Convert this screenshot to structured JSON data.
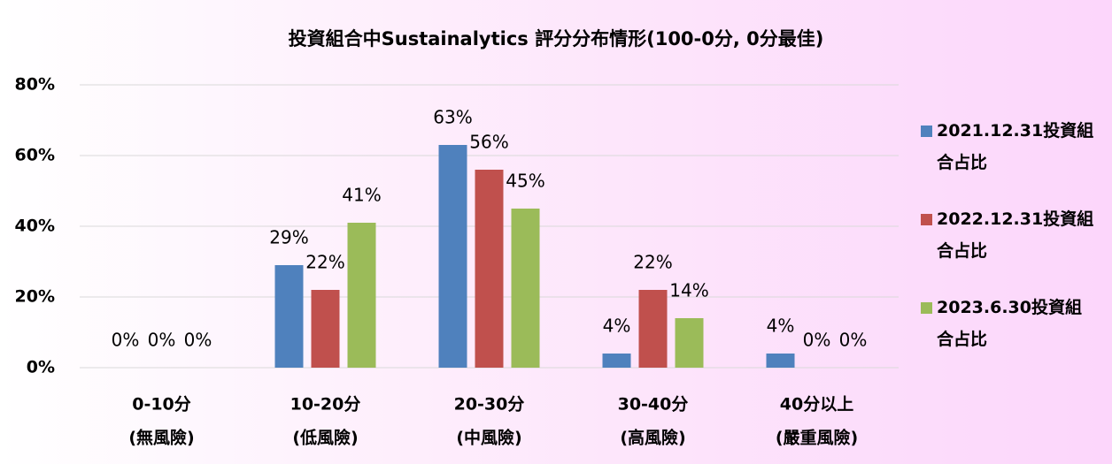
{
  "chart_data": {
    "type": "bar",
    "title": "投資組合中Sustainalytics 評分分布情形(100-0分, 0分最佳)",
    "categories": [
      [
        "0-10分",
        "(無風險)"
      ],
      [
        "10-20分",
        "(低風險)"
      ],
      [
        "20-30分",
        "(中風險)"
      ],
      [
        "30-40分",
        "(高風險)"
      ],
      [
        "40分以上",
        "(嚴重風險)"
      ]
    ],
    "series": [
      {
        "name": "2021.12.31投資組合占比",
        "color": "#4f81bd",
        "values": [
          0,
          29,
          63,
          4,
          4
        ],
        "value_labels": [
          "0%",
          "29%",
          "63%",
          "4%",
          "4%"
        ]
      },
      {
        "name": "2022.12.31投資組合占比",
        "color": "#c0504d",
        "values": [
          0,
          22,
          56,
          22,
          0
        ],
        "value_labels": [
          "0%",
          "22%",
          "56%",
          "22%",
          "0%"
        ]
      },
      {
        "name": "2023.6.30投資組合占比",
        "color": "#9bbb59",
        "values": [
          0,
          41,
          45,
          14,
          0
        ],
        "value_labels": [
          "0%",
          "41%",
          "45%",
          "14%",
          "0%"
        ]
      }
    ],
    "ylim": [
      0,
      80
    ],
    "yticks": [
      {
        "value": 0,
        "label": "0%"
      },
      {
        "value": 20,
        "label": "20%"
      },
      {
        "value": 40,
        "label": "40%"
      },
      {
        "value": 60,
        "label": "60%"
      },
      {
        "value": 80,
        "label": "80%"
      }
    ],
    "grid": true,
    "legend": "right"
  }
}
